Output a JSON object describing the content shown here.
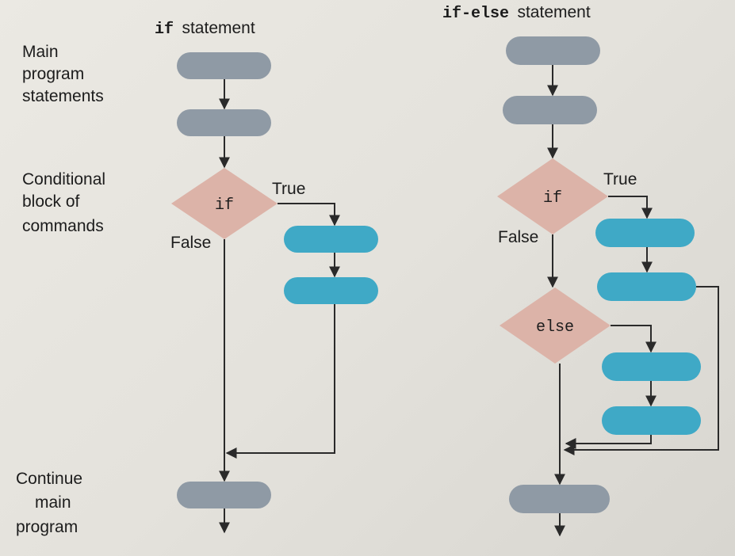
{
  "colors": {
    "main_block": "#8f9aa5",
    "cond_block": "#3fa9c6",
    "decision": "#dcb3a8",
    "line": "#2a2a2a"
  },
  "left_title": {
    "code": "if",
    "text": "statement"
  },
  "right_title": {
    "code": "if-else",
    "text": "statement"
  },
  "side_labels": {
    "main": [
      "Main",
      "program",
      "statements"
    ],
    "conditional": [
      "Conditional",
      "block of",
      "commands"
    ],
    "continue": [
      "Continue",
      "main",
      "program"
    ]
  },
  "left_flow": {
    "decision_label": "if",
    "true_label": "True",
    "false_label": "False"
  },
  "right_flow": {
    "if_label": "if",
    "else_label": "else",
    "true_label": "True",
    "false_label": "False"
  }
}
